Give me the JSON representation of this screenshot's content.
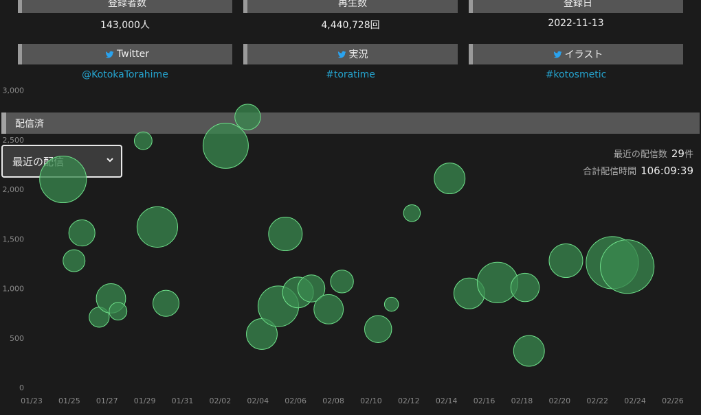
{
  "stats": {
    "subscribers_label": "登録者数",
    "subscribers_value": "143,000人",
    "views_label": "再生数",
    "views_value": "4,440,728回",
    "registered_label": "登録日",
    "registered_value": "2022-11-13",
    "twitter_label": "Twitter",
    "twitter_value": "@KotokaTorahime",
    "live_label": "実況",
    "live_value": "#toratime",
    "illust_label": "イラスト",
    "illust_value": "#kotosmetic"
  },
  "section": {
    "title": "配信済"
  },
  "filter": {
    "selected": "最近の配信"
  },
  "summary": {
    "count_label": "最近の配信数",
    "count_value": "29",
    "count_unit": "件",
    "total_label": "合計配信時間",
    "total_value": "106:09:39"
  },
  "colors": {
    "bubble_fill": "#3a8a4f",
    "bubble_stroke": "#6fe08a",
    "link": "#25a4cf",
    "twitter": "#2aa3ef"
  },
  "chart_data": {
    "type": "scatter",
    "x_ticks": [
      "01/23",
      "01/25",
      "01/27",
      "01/29",
      "01/31",
      "02/02",
      "02/04",
      "02/06",
      "02/08",
      "02/10",
      "02/12",
      "02/14",
      "02/16",
      "02/18",
      "02/20",
      "02/22",
      "02/24",
      "02/26"
    ],
    "y_ticks": [
      "0",
      "500",
      "1,000",
      "1,500",
      "2,000",
      "2,500",
      "3,000"
    ],
    "xlim": [
      "01/23",
      "02/26"
    ],
    "ylim": [
      0,
      3000
    ],
    "grid": false,
    "points": [
      {
        "x": "01/24 16:00",
        "y": 2100,
        "size": 1.0
      },
      {
        "x": "01/25 06:00",
        "y": 1280,
        "size": 0.47
      },
      {
        "x": "01/25 16:00",
        "y": 1560,
        "size": 0.56
      },
      {
        "x": "01/26 14:00",
        "y": 710,
        "size": 0.43
      },
      {
        "x": "01/27 05:00",
        "y": 900,
        "size": 0.63
      },
      {
        "x": "01/27 14:00",
        "y": 770,
        "size": 0.38
      },
      {
        "x": "01/28 22:00",
        "y": 2490,
        "size": 0.38
      },
      {
        "x": "01/29 16:00",
        "y": 1620,
        "size": 0.87
      },
      {
        "x": "01/30 03:00",
        "y": 850,
        "size": 0.56
      },
      {
        "x": "02/02 07:00",
        "y": 2440,
        "size": 0.97
      },
      {
        "x": "02/03 11:00",
        "y": 2730,
        "size": 0.55
      },
      {
        "x": "02/04 05:00",
        "y": 540,
        "size": 0.66
      },
      {
        "x": "02/05 02:00",
        "y": 820,
        "size": 0.87
      },
      {
        "x": "02/05 11:00",
        "y": 1550,
        "size": 0.72
      },
      {
        "x": "02/06 03:00",
        "y": 960,
        "size": 0.66
      },
      {
        "x": "02/06 20:00",
        "y": 1000,
        "size": 0.58
      },
      {
        "x": "02/07 18:00",
        "y": 790,
        "size": 0.63
      },
      {
        "x": "02/08 11:00",
        "y": 1070,
        "size": 0.49
      },
      {
        "x": "02/10 09:00",
        "y": 590,
        "size": 0.58
      },
      {
        "x": "02/11 02:00",
        "y": 840,
        "size": 0.3
      },
      {
        "x": "02/12 04:00",
        "y": 1760,
        "size": 0.36
      },
      {
        "x": "02/14 04:00",
        "y": 2110,
        "size": 0.66
      },
      {
        "x": "02/15 05:00",
        "y": 950,
        "size": 0.66
      },
      {
        "x": "02/16 17:00",
        "y": 1060,
        "size": 0.87
      },
      {
        "x": "02/18 04:00",
        "y": 1010,
        "size": 0.61
      },
      {
        "x": "02/18 09:00",
        "y": 370,
        "size": 0.66
      },
      {
        "x": "02/20 08:00",
        "y": 1280,
        "size": 0.72
      },
      {
        "x": "02/22 19:00",
        "y": 1260,
        "size": 1.12
      },
      {
        "x": "02/23 14:00",
        "y": 1220,
        "size": 1.15
      }
    ]
  }
}
